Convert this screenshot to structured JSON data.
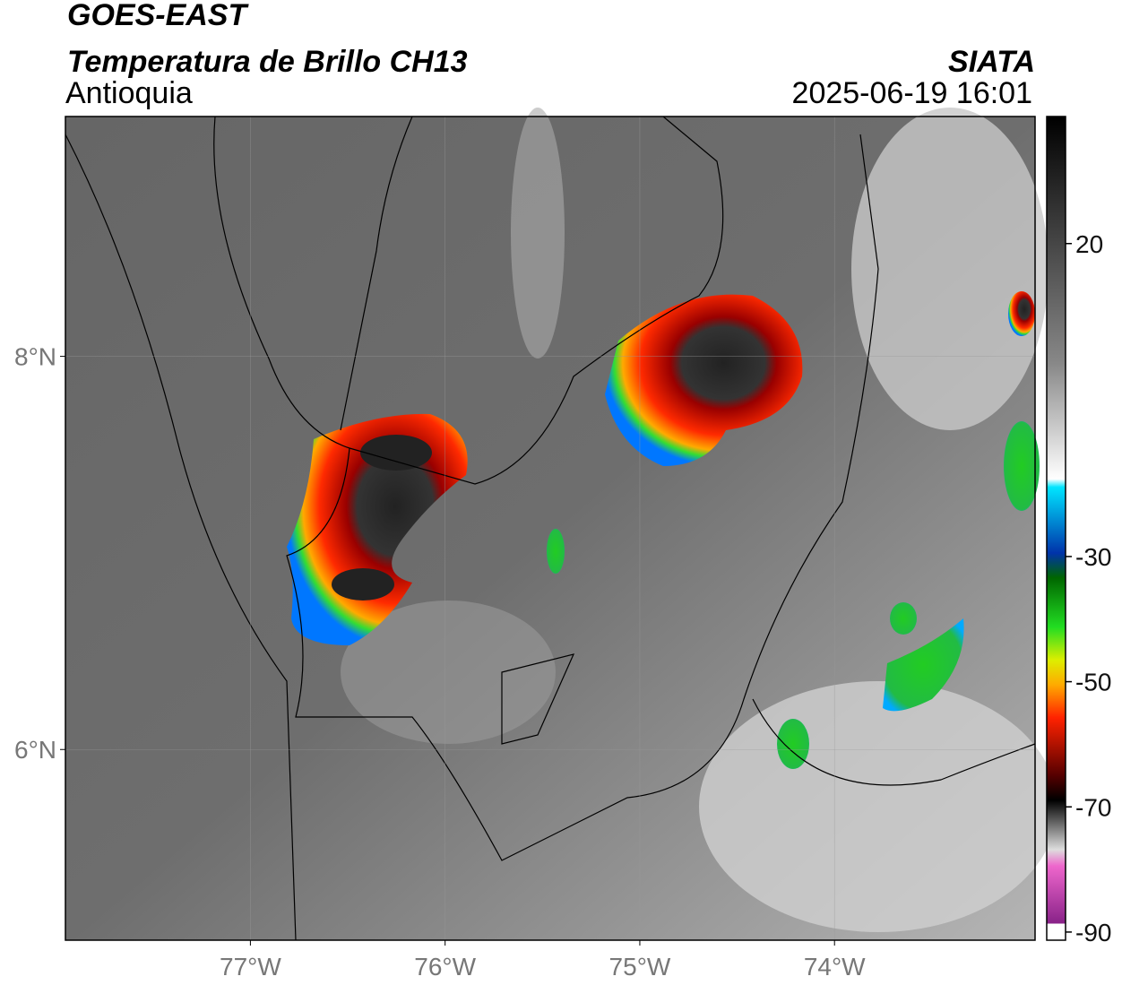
{
  "header": {
    "title": "GOES-EAST",
    "subtitle": "Temperatura de Brillo CH13",
    "region": "Antioquia",
    "source": "SIATA",
    "datetime": "2025-06-19 16:01"
  },
  "map": {
    "xlim": [
      -77.95,
      -72.97
    ],
    "ylim": [
      5.03,
      9.22
    ],
    "xticks": [
      {
        "value": -77,
        "label": "77°W"
      },
      {
        "value": -76,
        "label": "76°W"
      },
      {
        "value": -75,
        "label": "75°W"
      },
      {
        "value": -74,
        "label": "74°W"
      }
    ],
    "yticks": [
      {
        "value": 8,
        "label": "8°N"
      },
      {
        "value": 6,
        "label": "6°N"
      }
    ]
  },
  "colorbar": {
    "lim": [
      40.3,
      -91.3
    ],
    "ticks": [
      20,
      -30,
      -50,
      -70,
      -90
    ]
  }
}
